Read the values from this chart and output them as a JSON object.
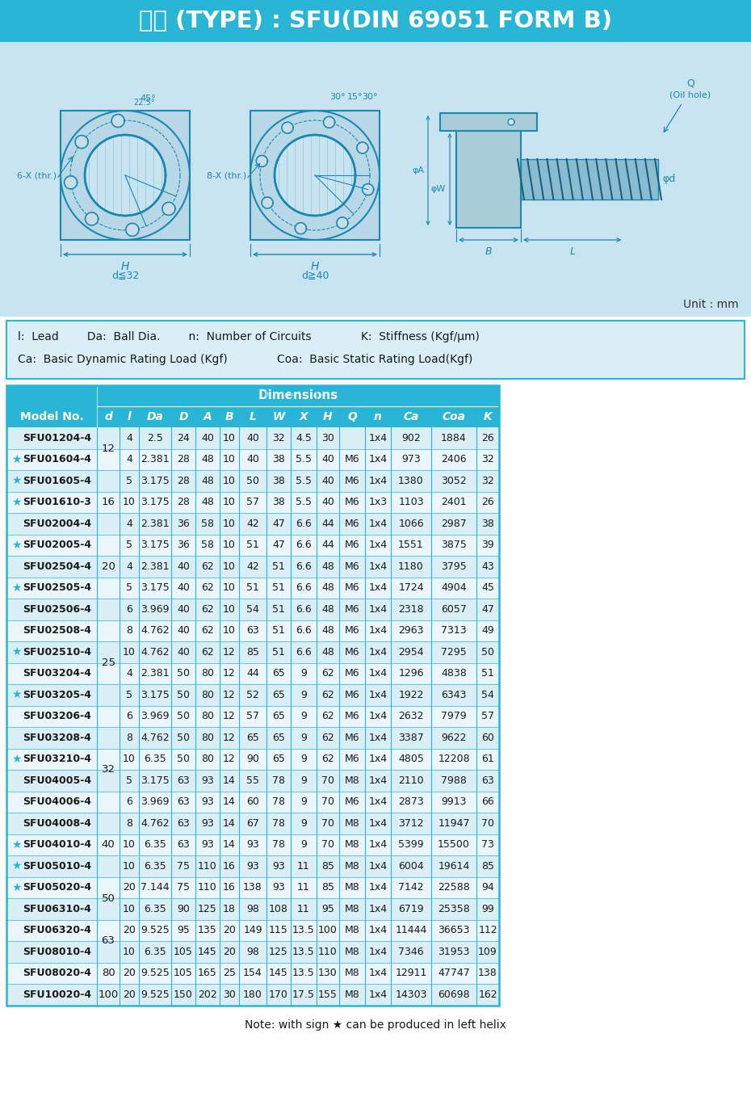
{
  "title_part1": "型式",
  "title_part2": "(TYPE) : SFU(DIN 69051 FORM B)",
  "unit_note": "Unit : mm",
  "legend_text": [
    "l:  Lead        Da:  Ball Dia.        n:  Number of Circuits              K:  Stiffness (Kgf/μm)",
    "Ca:  Basic Dynamic Rating Load (Kgf)              Coa:  Basic Static Rating Load(Kgf)"
  ],
  "note": "Note: with sign ★ can be produced in left helix",
  "rows": [
    {
      "star": false,
      "model": "SFU01204-4",
      "d": "12",
      "l": "4",
      "Da": "2.5",
      "D": "24",
      "A": "40",
      "B": "10",
      "L": "40",
      "W": "32",
      "X": "4.5",
      "H": "30",
      "Q": "",
      "n": "1x4",
      "Ca": "902",
      "Coa": "1884",
      "K": "26"
    },
    {
      "star": true,
      "model": "SFU01604-4",
      "d": "",
      "l": "4",
      "Da": "2.381",
      "D": "28",
      "A": "48",
      "B": "10",
      "L": "40",
      "W": "38",
      "X": "5.5",
      "H": "40",
      "Q": "M6",
      "n": "1x4",
      "Ca": "973",
      "Coa": "2406",
      "K": "32"
    },
    {
      "star": true,
      "model": "SFU01605-4",
      "d": "16",
      "l": "5",
      "Da": "3.175",
      "D": "28",
      "A": "48",
      "B": "10",
      "L": "50",
      "W": "38",
      "X": "5.5",
      "H": "40",
      "Q": "M6",
      "n": "1x4",
      "Ca": "1380",
      "Coa": "3052",
      "K": "32"
    },
    {
      "star": true,
      "model": "SFU01610-3",
      "d": "",
      "l": "10",
      "Da": "3.175",
      "D": "28",
      "A": "48",
      "B": "10",
      "L": "57",
      "W": "38",
      "X": "5.5",
      "H": "40",
      "Q": "M6",
      "n": "1x3",
      "Ca": "1103",
      "Coa": "2401",
      "K": "26"
    },
    {
      "star": false,
      "model": "SFU02004-4",
      "d": "",
      "l": "4",
      "Da": "2.381",
      "D": "36",
      "A": "58",
      "B": "10",
      "L": "42",
      "W": "47",
      "X": "6.6",
      "H": "44",
      "Q": "M6",
      "n": "1x4",
      "Ca": "1066",
      "Coa": "2987",
      "K": "38"
    },
    {
      "star": true,
      "model": "SFU02005-4",
      "d": "20",
      "l": "5",
      "Da": "3.175",
      "D": "36",
      "A": "58",
      "B": "10",
      "L": "51",
      "W": "47",
      "X": "6.6",
      "H": "44",
      "Q": "M6",
      "n": "1x4",
      "Ca": "1551",
      "Coa": "3875",
      "K": "39"
    },
    {
      "star": false,
      "model": "SFU02504-4",
      "d": "",
      "l": "4",
      "Da": "2.381",
      "D": "40",
      "A": "62",
      "B": "10",
      "L": "42",
      "W": "51",
      "X": "6.6",
      "H": "48",
      "Q": "M6",
      "n": "1x4",
      "Ca": "1180",
      "Coa": "3795",
      "K": "43"
    },
    {
      "star": true,
      "model": "SFU02505-4",
      "d": "",
      "l": "5",
      "Da": "3.175",
      "D": "40",
      "A": "62",
      "B": "10",
      "L": "51",
      "W": "51",
      "X": "6.6",
      "H": "48",
      "Q": "M6",
      "n": "1x4",
      "Ca": "1724",
      "Coa": "4904",
      "K": "45"
    },
    {
      "star": false,
      "model": "SFU02506-4",
      "d": "25",
      "l": "6",
      "Da": "3.969",
      "D": "40",
      "A": "62",
      "B": "10",
      "L": "54",
      "W": "51",
      "X": "6.6",
      "H": "48",
      "Q": "M6",
      "n": "1x4",
      "Ca": "2318",
      "Coa": "6057",
      "K": "47"
    },
    {
      "star": false,
      "model": "SFU02508-4",
      "d": "",
      "l": "8",
      "Da": "4.762",
      "D": "40",
      "A": "62",
      "B": "10",
      "L": "63",
      "W": "51",
      "X": "6.6",
      "H": "48",
      "Q": "M6",
      "n": "1x4",
      "Ca": "2963",
      "Coa": "7313",
      "K": "49"
    },
    {
      "star": true,
      "model": "SFU02510-4",
      "d": "",
      "l": "10",
      "Da": "4.762",
      "D": "40",
      "A": "62",
      "B": "12",
      "L": "85",
      "W": "51",
      "X": "6.6",
      "H": "48",
      "Q": "M6",
      "n": "1x4",
      "Ca": "2954",
      "Coa": "7295",
      "K": "50"
    },
    {
      "star": false,
      "model": "SFU03204-4",
      "d": "",
      "l": "4",
      "Da": "2.381",
      "D": "50",
      "A": "80",
      "B": "12",
      "L": "44",
      "W": "65",
      "X": "9",
      "H": "62",
      "Q": "M6",
      "n": "1x4",
      "Ca": "1296",
      "Coa": "4838",
      "K": "51"
    },
    {
      "star": true,
      "model": "SFU03205-4",
      "d": "",
      "l": "5",
      "Da": "3.175",
      "D": "50",
      "A": "80",
      "B": "12",
      "L": "52",
      "W": "65",
      "X": "9",
      "H": "62",
      "Q": "M6",
      "n": "1x4",
      "Ca": "1922",
      "Coa": "6343",
      "K": "54"
    },
    {
      "star": false,
      "model": "SFU03206-4",
      "d": "",
      "l": "6",
      "Da": "3.969",
      "D": "50",
      "A": "80",
      "B": "12",
      "L": "57",
      "W": "65",
      "X": "9",
      "H": "62",
      "Q": "M6",
      "n": "1x4",
      "Ca": "2632",
      "Coa": "7979",
      "K": "57"
    },
    {
      "star": false,
      "model": "SFU03208-4",
      "d": "32",
      "l": "8",
      "Da": "4.762",
      "D": "50",
      "A": "80",
      "B": "12",
      "L": "65",
      "W": "65",
      "X": "9",
      "H": "62",
      "Q": "M6",
      "n": "1x4",
      "Ca": "3387",
      "Coa": "9622",
      "K": "60"
    },
    {
      "star": true,
      "model": "SFU03210-4",
      "d": "",
      "l": "10",
      "Da": "6.35",
      "D": "50",
      "A": "80",
      "B": "12",
      "L": "90",
      "W": "65",
      "X": "9",
      "H": "62",
      "Q": "M6",
      "n": "1x4",
      "Ca": "4805",
      "Coa": "12208",
      "K": "61"
    },
    {
      "star": false,
      "model": "SFU04005-4",
      "d": "",
      "l": "5",
      "Da": "3.175",
      "D": "63",
      "A": "93",
      "B": "14",
      "L": "55",
      "W": "78",
      "X": "9",
      "H": "70",
      "Q": "M8",
      "n": "1x4",
      "Ca": "2110",
      "Coa": "7988",
      "K": "63"
    },
    {
      "star": false,
      "model": "SFU04006-4",
      "d": "",
      "l": "6",
      "Da": "3.969",
      "D": "63",
      "A": "93",
      "B": "14",
      "L": "60",
      "W": "78",
      "X": "9",
      "H": "70",
      "Q": "M6",
      "n": "1x4",
      "Ca": "2873",
      "Coa": "9913",
      "K": "66"
    },
    {
      "star": false,
      "model": "SFU04008-4",
      "d": "40",
      "l": "8",
      "Da": "4.762",
      "D": "63",
      "A": "93",
      "B": "14",
      "L": "67",
      "W": "78",
      "X": "9",
      "H": "70",
      "Q": "M8",
      "n": "1x4",
      "Ca": "3712",
      "Coa": "11947",
      "K": "70"
    },
    {
      "star": true,
      "model": "SFU04010-4",
      "d": "",
      "l": "10",
      "Da": "6.35",
      "D": "63",
      "A": "93",
      "B": "14",
      "L": "93",
      "W": "78",
      "X": "9",
      "H": "70",
      "Q": "M8",
      "n": "1x4",
      "Ca": "5399",
      "Coa": "15500",
      "K": "73"
    },
    {
      "star": true,
      "model": "SFU05010-4",
      "d": "",
      "l": "10",
      "Da": "6.35",
      "D": "75",
      "A": "110",
      "B": "16",
      "L": "93",
      "W": "93",
      "X": "11",
      "H": "85",
      "Q": "M8",
      "n": "1x4",
      "Ca": "6004",
      "Coa": "19614",
      "K": "85"
    },
    {
      "star": true,
      "model": "SFU05020-4",
      "d": "50",
      "l": "20",
      "Da": "7.144",
      "D": "75",
      "A": "110",
      "B": "16",
      "L": "138",
      "W": "93",
      "X": "11",
      "H": "85",
      "Q": "M8",
      "n": "1x4",
      "Ca": "7142",
      "Coa": "22588",
      "K": "94"
    },
    {
      "star": false,
      "model": "SFU06310-4",
      "d": "",
      "l": "10",
      "Da": "6.35",
      "D": "90",
      "A": "125",
      "B": "18",
      "L": "98",
      "W": "108",
      "X": "11",
      "H": "95",
      "Q": "M8",
      "n": "1x4",
      "Ca": "6719",
      "Coa": "25358",
      "K": "99"
    },
    {
      "star": false,
      "model": "SFU06320-4",
      "d": "63",
      "l": "20",
      "Da": "9.525",
      "D": "95",
      "A": "135",
      "B": "20",
      "L": "149",
      "W": "115",
      "X": "13.5",
      "H": "100",
      "Q": "M8",
      "n": "1x4",
      "Ca": "11444",
      "Coa": "36653",
      "K": "112"
    },
    {
      "star": false,
      "model": "SFU08010-4",
      "d": "",
      "l": "10",
      "Da": "6.35",
      "D": "105",
      "A": "145",
      "B": "20",
      "L": "98",
      "W": "125",
      "X": "13.5",
      "H": "110",
      "Q": "M8",
      "n": "1x4",
      "Ca": "7346",
      "Coa": "31953",
      "K": "109"
    },
    {
      "star": false,
      "model": "SFU08020-4",
      "d": "80",
      "l": "20",
      "Da": "9.525",
      "D": "105",
      "A": "165",
      "B": "25",
      "L": "154",
      "W": "145",
      "X": "13.5",
      "H": "130",
      "Q": "M8",
      "n": "1x4",
      "Ca": "12911",
      "Coa": "47747",
      "K": "138"
    },
    {
      "star": false,
      "model": "SFU10020-4",
      "d": "100",
      "l": "20",
      "Da": "9.525",
      "D": "150",
      "A": "202",
      "B": "30",
      "L": "180",
      "W": "170",
      "X": "17.5",
      "H": "155",
      "Q": "M8",
      "n": "1x4",
      "Ca": "14303",
      "Coa": "60698",
      "K": "162"
    }
  ],
  "colors": {
    "title_bg": "#29b6d6",
    "title_text": "#ffffff",
    "header_bg": "#29b6d6",
    "header_text": "#ffffff",
    "row_even": "#daeef5",
    "row_odd": "#eaf6fb",
    "diagram_bg": "#c8e4f0",
    "legend_bg": "#daeef5",
    "border": "#29b6d6",
    "star_color": "#29b6d6",
    "text_dark": "#1a1a1a",
    "dim_line": "#1a88b0"
  }
}
